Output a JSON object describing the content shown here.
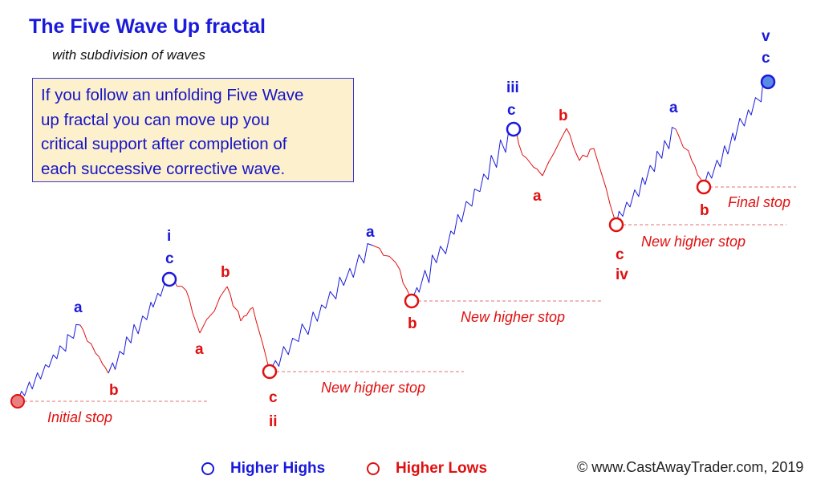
{
  "title": "The Five Wave Up fractal",
  "subtitle": "with subdivision of waves",
  "info_lines": [
    "If you follow an unfolding Five Wave",
    "up fractal you can move up you",
    "critical support after completion of",
    "each successive corrective wave."
  ],
  "wave_labels": {
    "wave1_degree": "i",
    "wave1_c": "c",
    "wave1_sub_a": "a",
    "wave1_sub_b": "b",
    "wave2_a": "a",
    "wave2_b": "b",
    "wave2_c": "c",
    "wave2_degree": "ii",
    "wave3_sub_a": "a",
    "wave3_sub_b": "b",
    "wave3_degree": "iii",
    "wave3_c": "c",
    "wave4_a": "a",
    "wave4_b": "b",
    "wave4_c": "c",
    "wave4_degree": "iv",
    "wave5_sub_a": "a",
    "wave5_sub_b": "b",
    "wave5_degree": "v",
    "wave5_c": "c"
  },
  "stops": [
    "Initial stop",
    "New higher stop",
    "New higher stop",
    "New higher stop",
    "Final stop"
  ],
  "legend": {
    "higher_highs": "Higher Highs",
    "higher_lows": "Higher Lows"
  },
  "copyright": "© www.CastAwayTrader.com, 2019",
  "colors": {
    "blue": "#1a1adb",
    "red": "#e01010",
    "box_fill": "#fdf0cc"
  }
}
